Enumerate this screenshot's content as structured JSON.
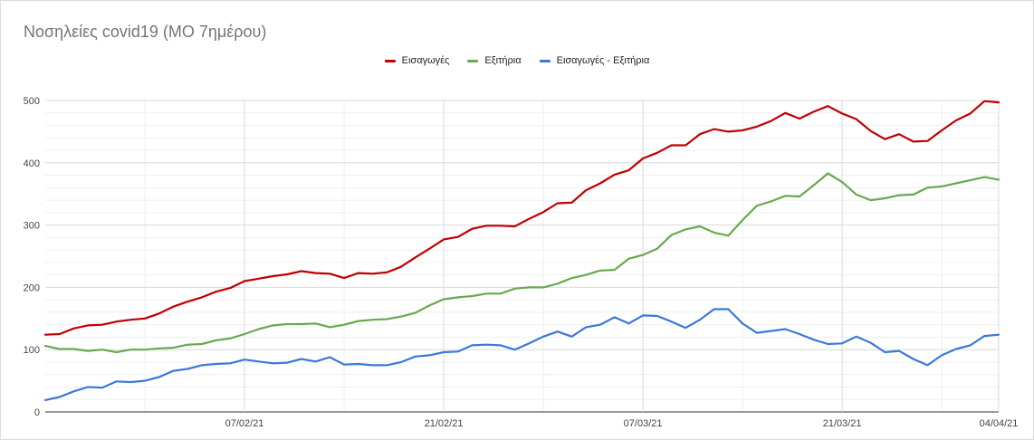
{
  "chart_data": {
    "type": "line",
    "title": "Νοσηλείες covid19 (ΜΟ 7ημέρου)",
    "xlabel": "",
    "ylabel": "",
    "ylim": [
      0,
      500
    ],
    "yticks": [
      0,
      100,
      200,
      300,
      400,
      500
    ],
    "x_start": "2021-01-24",
    "x_end": "2021-04-04",
    "xtick_labels": [
      "07/02/21",
      "21/02/21",
      "07/03/21",
      "21/03/21",
      "04/04/21"
    ],
    "xtick_indices": [
      14,
      28,
      42,
      56,
      70
    ],
    "grid": true,
    "legend_position": "top-center",
    "series": [
      {
        "name": "Εισαγωγές",
        "color": "#c00000",
        "values": [
          124,
          125,
          134,
          139,
          140,
          145,
          148,
          150,
          158,
          169,
          177,
          184,
          193,
          199,
          210,
          214,
          218,
          221,
          226,
          223,
          222,
          215,
          223,
          222,
          224,
          233,
          248,
          262,
          277,
          281,
          294,
          299,
          299,
          298,
          310,
          321,
          335,
          336,
          356,
          367,
          381,
          388,
          407,
          416,
          428,
          428,
          446,
          454,
          450,
          452,
          458,
          467,
          480,
          471,
          482,
          491,
          479,
          470,
          451,
          438,
          446,
          434,
          435,
          452,
          468,
          479,
          499,
          497
        ]
      },
      {
        "name": "Εξιτήρια",
        "color": "#6aa84f",
        "values": [
          106,
          101,
          101,
          98,
          100,
          96,
          100,
          100,
          102,
          103,
          108,
          109,
          115,
          118,
          125,
          133,
          139,
          141,
          141,
          142,
          136,
          140,
          146,
          148,
          149,
          153,
          159,
          171,
          181,
          184,
          186,
          190,
          190,
          198,
          200,
          200,
          206,
          215,
          220,
          227,
          228,
          246,
          252,
          262,
          284,
          293,
          298,
          288,
          283,
          308,
          331,
          338,
          347,
          346,
          364,
          383,
          369,
          349,
          340,
          343,
          348,
          349,
          360,
          362,
          367,
          372,
          377,
          373
        ]
      },
      {
        "name": "Εισαγωγές - Εξιτήρια",
        "color": "#3c78d8",
        "values": [
          19,
          24,
          33,
          40,
          39,
          49,
          48,
          50,
          56,
          66,
          69,
          75,
          77,
          78,
          84,
          81,
          78,
          79,
          85,
          81,
          88,
          76,
          77,
          75,
          75,
          80,
          89,
          91,
          96,
          97,
          107,
          108,
          107,
          100,
          110,
          121,
          129,
          121,
          136,
          140,
          152,
          142,
          155,
          154,
          145,
          135,
          148,
          165,
          165,
          142,
          127,
          130,
          133,
          125,
          116,
          109,
          110,
          121,
          111,
          96,
          98,
          85,
          75,
          91,
          101,
          107,
          122,
          124
        ]
      }
    ]
  }
}
